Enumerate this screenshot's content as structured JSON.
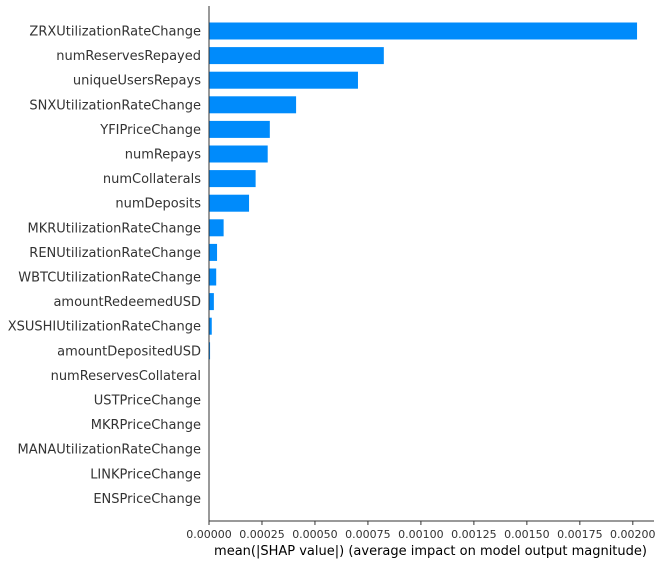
{
  "chart_data": {
    "type": "bar",
    "orientation": "horizontal",
    "xlabel": "mean(|SHAP value|) (average impact on model output magnitude)",
    "ylabel": "",
    "xlim": [
      0,
      0.0021
    ],
    "xticks": [
      "0.00000",
      "0.00025",
      "0.00050",
      "0.00075",
      "0.00100",
      "0.00125",
      "0.00150",
      "0.00175",
      "0.00200"
    ],
    "xtick_values": [
      0,
      0.00025,
      0.0005,
      0.00075,
      0.001,
      0.00125,
      0.0015,
      0.00175,
      0.002
    ],
    "bar_color": "#008bfb",
    "grid": false,
    "categories": [
      "ZRXUtilizationRateChange",
      "numReservesRepayed",
      "uniqueUsersRepays",
      "SNXUtilizationRateChange",
      "YFIPriceChange",
      "numRepays",
      "numCollaterals",
      "numDeposits",
      "MKRUtilizationRateChange",
      "RENUtilizationRateChange",
      "WBTCUtilizationRateChange",
      "amountRedeemedUSD",
      "XSUSHIUtilizationRateChange",
      "amountDepositedUSD",
      "numReservesCollateral",
      "USTPriceChange",
      "MKRPriceChange",
      "MANAUtilizationRateChange",
      "LINKPriceChange",
      "ENSPriceChange"
    ],
    "values": [
      0.00202,
      0.000825,
      0.000703,
      0.000411,
      0.000287,
      0.000277,
      0.00022,
      0.000189,
      6.9e-05,
      3.8e-05,
      3.4e-05,
      2.3e-05,
      1.3e-05,
      5e-06,
      5e-07,
      4e-07,
      3e-07,
      3e-07,
      2e-07,
      2e-07
    ]
  }
}
